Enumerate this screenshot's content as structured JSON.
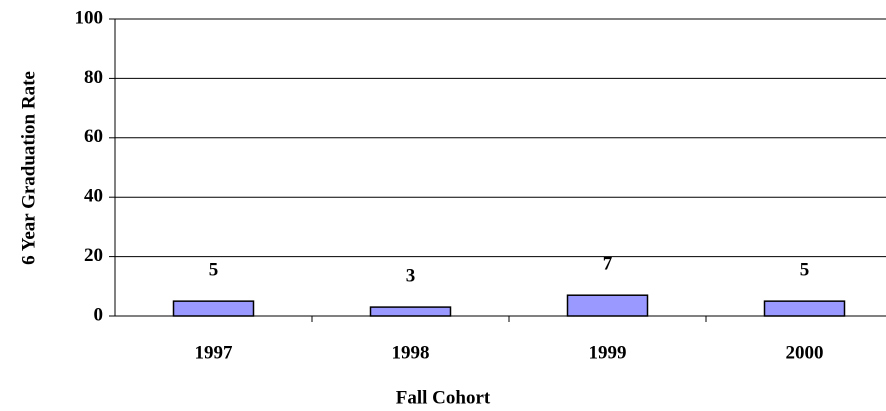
{
  "chart_data": {
    "type": "bar",
    "x_label": "Fall Cohort",
    "y_label": "6 Year Graduation Rate",
    "categories": [
      "1997",
      "1998",
      "1999",
      "2000"
    ],
    "values": [
      5,
      3,
      7,
      5
    ],
    "color": "#9999ff",
    "ylim": [
      0,
      100
    ],
    "yticks": [
      0,
      20,
      40,
      60,
      80,
      100
    ],
    "grid": true
  }
}
